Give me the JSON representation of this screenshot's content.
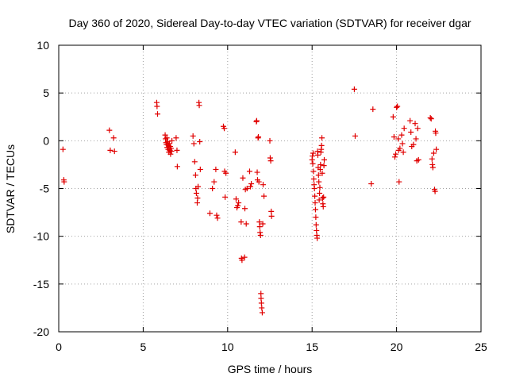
{
  "chart_data": {
    "type": "scatter",
    "title": "Day 360 of 2020, Sidereal Day-to-day VTEC variation (SDTVAR) for receiver dgar",
    "xlabel": "GPS time / hours",
    "ylabel": "SDTVAR / TECUs",
    "xlim": [
      0,
      25
    ],
    "ylim": [
      -20,
      10
    ],
    "xticks": [
      0,
      5,
      10,
      15,
      20,
      25
    ],
    "yticks": [
      -20,
      -15,
      -10,
      -5,
      0,
      5,
      10
    ],
    "grid": true,
    "marker": "+",
    "color": "#e00000",
    "series": [
      {
        "name": "SDTVAR",
        "points": [
          [
            0.25,
            -0.9
          ],
          [
            0.3,
            -4.1
          ],
          [
            0.32,
            -4.3
          ],
          [
            3.0,
            1.1
          ],
          [
            3.05,
            -1.0
          ],
          [
            3.25,
            0.3
          ],
          [
            3.3,
            -1.1
          ],
          [
            5.8,
            4.0
          ],
          [
            5.82,
            3.6
          ],
          [
            5.85,
            2.8
          ],
          [
            6.3,
            0.6
          ],
          [
            6.32,
            0.2
          ],
          [
            6.35,
            -0.2
          ],
          [
            6.38,
            -0.4
          ],
          [
            6.4,
            0.3
          ],
          [
            6.42,
            -0.7
          ],
          [
            6.45,
            -0.1
          ],
          [
            6.48,
            -0.9
          ],
          [
            6.5,
            -0.5
          ],
          [
            6.52,
            -1.2
          ],
          [
            6.55,
            -0.3
          ],
          [
            6.58,
            -1.0
          ],
          [
            6.6,
            -0.6
          ],
          [
            6.62,
            -1.4
          ],
          [
            6.65,
            -0.8
          ],
          [
            6.68,
            -1.1
          ],
          [
            6.7,
            0.0
          ],
          [
            6.95,
            0.3
          ],
          [
            7.0,
            -1.0
          ],
          [
            7.02,
            -2.7
          ],
          [
            7.95,
            0.5
          ],
          [
            8.0,
            -0.3
          ],
          [
            8.05,
            -2.2
          ],
          [
            8.1,
            -3.6
          ],
          [
            8.12,
            -5.0
          ],
          [
            8.15,
            -5.5
          ],
          [
            8.2,
            -6.5
          ],
          [
            8.22,
            -6.0
          ],
          [
            8.25,
            -4.8
          ],
          [
            8.3,
            4.0
          ],
          [
            8.32,
            3.7
          ],
          [
            8.35,
            -0.1
          ],
          [
            8.38,
            -3.0
          ],
          [
            8.95,
            -7.6
          ],
          [
            9.1,
            -5.0
          ],
          [
            9.2,
            -4.3
          ],
          [
            9.3,
            -3.0
          ],
          [
            9.35,
            -7.8
          ],
          [
            9.4,
            -8.1
          ],
          [
            9.75,
            1.5
          ],
          [
            9.8,
            1.3
          ],
          [
            9.82,
            -3.2
          ],
          [
            9.85,
            -5.9
          ],
          [
            9.9,
            -3.4
          ],
          [
            10.45,
            -1.2
          ],
          [
            10.5,
            -6.1
          ],
          [
            10.55,
            -7.0
          ],
          [
            10.6,
            -6.8
          ],
          [
            10.65,
            -6.5
          ],
          [
            10.8,
            -8.5
          ],
          [
            10.82,
            -12.3
          ],
          [
            10.85,
            -12.5
          ],
          [
            10.9,
            -3.9
          ],
          [
            11.0,
            -12.2
          ],
          [
            11.02,
            -7.1
          ],
          [
            11.05,
            -5.1
          ],
          [
            11.1,
            -8.7
          ],
          [
            11.15,
            -5.0
          ],
          [
            11.3,
            -3.2
          ],
          [
            11.35,
            -4.8
          ],
          [
            11.4,
            -4.5
          ],
          [
            11.7,
            2.0
          ],
          [
            11.72,
            2.1
          ],
          [
            11.75,
            -3.3
          ],
          [
            11.77,
            -4.1
          ],
          [
            11.8,
            0.3
          ],
          [
            11.82,
            0.4
          ],
          [
            11.85,
            -4.3
          ],
          [
            11.88,
            -8.5
          ],
          [
            11.9,
            -9.0
          ],
          [
            11.92,
            -9.6
          ],
          [
            11.95,
            -9.9
          ],
          [
            11.97,
            -16.0
          ],
          [
            11.98,
            -16.5
          ],
          [
            12.0,
            -17.0
          ],
          [
            12.02,
            -17.5
          ],
          [
            12.05,
            -18.0
          ],
          [
            12.08,
            -8.7
          ],
          [
            12.1,
            -4.6
          ],
          [
            12.15,
            -5.8
          ],
          [
            12.5,
            0.0
          ],
          [
            12.52,
            -1.8
          ],
          [
            12.55,
            -2.1
          ],
          [
            12.58,
            -7.4
          ],
          [
            12.6,
            -7.9
          ],
          [
            15.0,
            -2.0
          ],
          [
            15.02,
            -1.6
          ],
          [
            15.04,
            -2.4
          ],
          [
            15.06,
            -1.3
          ],
          [
            15.08,
            -3.2
          ],
          [
            15.1,
            -4.0
          ],
          [
            15.12,
            -4.6
          ],
          [
            15.14,
            -5.0
          ],
          [
            15.16,
            -5.8
          ],
          [
            15.18,
            -6.5
          ],
          [
            15.2,
            -7.2
          ],
          [
            15.22,
            -8.0
          ],
          [
            15.24,
            -8.8
          ],
          [
            15.26,
            -9.4
          ],
          [
            15.28,
            -9.9
          ],
          [
            15.3,
            -10.2
          ],
          [
            15.32,
            -1.1
          ],
          [
            15.34,
            -1.5
          ],
          [
            15.36,
            -2.8
          ],
          [
            15.38,
            -3.6
          ],
          [
            15.4,
            -4.3
          ],
          [
            15.42,
            -6.2
          ],
          [
            15.44,
            -5.5
          ],
          [
            15.46,
            -4.9
          ],
          [
            15.48,
            -3.0
          ],
          [
            15.5,
            -2.5
          ],
          [
            15.52,
            -1.2
          ],
          [
            15.54,
            -0.9
          ],
          [
            15.56,
            -0.5
          ],
          [
            15.58,
            0.3
          ],
          [
            15.6,
            -3.4
          ],
          [
            15.62,
            -6.0
          ],
          [
            15.64,
            -6.6
          ],
          [
            15.66,
            -6.9
          ],
          [
            15.68,
            -5.9
          ],
          [
            15.7,
            -2.6
          ],
          [
            15.72,
            -2.0
          ],
          [
            17.5,
            5.4
          ],
          [
            17.55,
            0.5
          ],
          [
            18.5,
            -4.5
          ],
          [
            18.6,
            3.3
          ],
          [
            19.8,
            2.5
          ],
          [
            19.85,
            0.4
          ],
          [
            19.9,
            -1.7
          ],
          [
            19.95,
            -1.4
          ],
          [
            20.0,
            3.5
          ],
          [
            20.05,
            3.6
          ],
          [
            20.1,
            0.2
          ],
          [
            20.12,
            -1.0
          ],
          [
            20.15,
            -4.3
          ],
          [
            20.2,
            -0.8
          ],
          [
            20.3,
            0.6
          ],
          [
            20.35,
            -0.3
          ],
          [
            20.4,
            -1.2
          ],
          [
            20.45,
            1.3
          ],
          [
            20.8,
            2.1
          ],
          [
            20.85,
            0.9
          ],
          [
            20.9,
            -0.6
          ],
          [
            21.0,
            -0.4
          ],
          [
            21.1,
            1.8
          ],
          [
            21.15,
            0.2
          ],
          [
            21.2,
            -2.1
          ],
          [
            21.25,
            1.3
          ],
          [
            21.3,
            -2.0
          ],
          [
            22.0,
            2.4
          ],
          [
            22.05,
            2.3
          ],
          [
            22.1,
            -1.9
          ],
          [
            22.12,
            -2.5
          ],
          [
            22.15,
            -2.8
          ],
          [
            22.2,
            -1.3
          ],
          [
            22.25,
            -5.1
          ],
          [
            22.28,
            -5.3
          ],
          [
            22.3,
            1.0
          ],
          [
            22.32,
            0.8
          ],
          [
            22.35,
            -0.9
          ]
        ]
      }
    ]
  }
}
